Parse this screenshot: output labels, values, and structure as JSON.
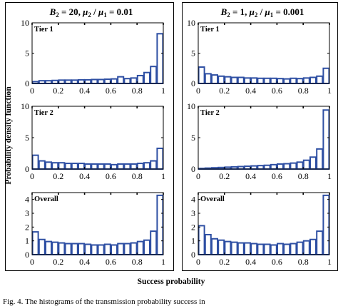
{
  "figure": {
    "y_axis_label": "Probability density function",
    "x_axis_label": "Success probability",
    "caption_fragment": "Fig. 4.  The histograms of the transmission probability success in",
    "bar_color": "#2e4fa3"
  },
  "panel_headers": [
    {
      "b_symbol": "B",
      "b_sub": "2",
      "b_value": " = 20, ",
      "mu_num": "μ",
      "mu_num_sub": "2",
      "slash": " / ",
      "mu_den": "μ",
      "mu_den_sub": "1",
      "ratio": " = 0.01"
    },
    {
      "b_symbol": "B",
      "b_sub": "2",
      "b_value": " = 1, ",
      "mu_num": "μ",
      "mu_num_sub": "2",
      "slash": " / ",
      "mu_den": "μ",
      "mu_den_sub": "1",
      "ratio": " = 0.001"
    }
  ],
  "chart_data": [
    {
      "type": "bar",
      "column": 0,
      "row": 0,
      "legend": "Tier 1",
      "xlim": [
        0,
        1
      ],
      "ylim": [
        0,
        10
      ],
      "xticks": [
        "0",
        "0.2",
        "0.4",
        "0.6",
        "0.8",
        "1"
      ],
      "yticks": [
        "0",
        "5",
        "10"
      ],
      "bin_width": 0.05,
      "x": [
        0.025,
        0.075,
        0.125,
        0.175,
        0.225,
        0.275,
        0.325,
        0.375,
        0.425,
        0.475,
        0.525,
        0.575,
        0.625,
        0.675,
        0.725,
        0.775,
        0.825,
        0.875,
        0.925,
        0.975
      ],
      "values": [
        0.3,
        0.45,
        0.45,
        0.5,
        0.55,
        0.55,
        0.55,
        0.6,
        0.6,
        0.65,
        0.65,
        0.7,
        0.75,
        1.1,
        0.8,
        0.9,
        1.3,
        1.8,
        2.8,
        8.2
      ]
    },
    {
      "type": "bar",
      "column": 0,
      "row": 1,
      "legend": "Tier 2",
      "xlim": [
        0,
        1
      ],
      "ylim": [
        0,
        10
      ],
      "xticks": [
        "0",
        "0.2",
        "0.4",
        "0.6",
        "0.8",
        "1"
      ],
      "yticks": [
        "0",
        "5",
        "10"
      ],
      "bin_width": 0.05,
      "x": [
        0.025,
        0.075,
        0.125,
        0.175,
        0.225,
        0.275,
        0.325,
        0.375,
        0.425,
        0.475,
        0.525,
        0.575,
        0.625,
        0.675,
        0.725,
        0.775,
        0.825,
        0.875,
        0.925,
        0.975
      ],
      "values": [
        2.2,
        1.3,
        1.1,
        1.0,
        1.0,
        0.9,
        0.9,
        0.9,
        0.8,
        0.8,
        0.8,
        0.8,
        0.7,
        0.8,
        0.8,
        0.8,
        0.9,
        1.0,
        1.3,
        3.3
      ]
    },
    {
      "type": "bar",
      "column": 0,
      "row": 2,
      "legend": "Overall",
      "xlim": [
        0,
        1
      ],
      "ylim": [
        0,
        4.5
      ],
      "xticks": [
        "0",
        "0.2",
        "0.4",
        "0.6",
        "0.8",
        "1"
      ],
      "yticks": [
        "0",
        "1",
        "2",
        "3",
        "4"
      ],
      "bin_width": 0.05,
      "x": [
        0.025,
        0.075,
        0.125,
        0.175,
        0.225,
        0.275,
        0.325,
        0.375,
        0.425,
        0.475,
        0.525,
        0.575,
        0.625,
        0.675,
        0.725,
        0.775,
        0.825,
        0.875,
        0.925,
        0.975
      ],
      "values": [
        1.65,
        1.1,
        0.95,
        0.9,
        0.85,
        0.8,
        0.8,
        0.8,
        0.75,
        0.7,
        0.7,
        0.75,
        0.7,
        0.8,
        0.8,
        0.85,
        0.95,
        1.05,
        1.7,
        4.3
      ]
    },
    {
      "type": "bar",
      "column": 1,
      "row": 0,
      "legend": "Tier 1",
      "xlim": [
        0,
        1
      ],
      "ylim": [
        0,
        10
      ],
      "xticks": [
        "0",
        "0.2",
        "0.4",
        "0.6",
        "0.8",
        "1"
      ],
      "yticks": [
        "0",
        "5",
        "10"
      ],
      "bin_width": 0.05,
      "x": [
        0.025,
        0.075,
        0.125,
        0.175,
        0.225,
        0.275,
        0.325,
        0.375,
        0.425,
        0.475,
        0.525,
        0.575,
        0.625,
        0.675,
        0.725,
        0.775,
        0.825,
        0.875,
        0.925,
        0.975
      ],
      "values": [
        2.7,
        1.6,
        1.4,
        1.2,
        1.1,
        1.0,
        1.0,
        0.9,
        0.9,
        0.85,
        0.85,
        0.85,
        0.8,
        0.75,
        0.85,
        0.8,
        0.9,
        1.0,
        1.2,
        2.5
      ]
    },
    {
      "type": "bar",
      "column": 1,
      "row": 1,
      "legend": "Tier 2",
      "xlim": [
        0,
        1
      ],
      "ylim": [
        0,
        10
      ],
      "xticks": [
        "0",
        "0.2",
        "0.4",
        "0.6",
        "0.8",
        "1"
      ],
      "yticks": [
        "0",
        "5",
        "10"
      ],
      "bin_width": 0.05,
      "x": [
        0.025,
        0.075,
        0.125,
        0.175,
        0.225,
        0.275,
        0.325,
        0.375,
        0.425,
        0.475,
        0.525,
        0.575,
        0.625,
        0.675,
        0.725,
        0.775,
        0.825,
        0.875,
        0.925,
        0.975
      ],
      "values": [
        0.1,
        0.15,
        0.2,
        0.25,
        0.3,
        0.35,
        0.4,
        0.45,
        0.5,
        0.55,
        0.6,
        0.7,
        0.8,
        0.85,
        0.95,
        1.1,
        1.4,
        1.9,
        3.2,
        9.4
      ]
    },
    {
      "type": "bar",
      "column": 1,
      "row": 2,
      "legend": "Overall",
      "xlim": [
        0,
        1
      ],
      "ylim": [
        0,
        4.5
      ],
      "xticks": [
        "0",
        "0.2",
        "0.4",
        "0.6",
        "0.8",
        "1"
      ],
      "yticks": [
        "0",
        "1",
        "2",
        "3",
        "4"
      ],
      "bin_width": 0.05,
      "x": [
        0.025,
        0.075,
        0.125,
        0.175,
        0.225,
        0.275,
        0.325,
        0.375,
        0.425,
        0.475,
        0.525,
        0.575,
        0.625,
        0.675,
        0.725,
        0.775,
        0.825,
        0.875,
        0.925,
        0.975
      ],
      "values": [
        2.1,
        1.45,
        1.15,
        1.05,
        0.95,
        0.9,
        0.85,
        0.85,
        0.8,
        0.75,
        0.75,
        0.7,
        0.8,
        0.75,
        0.8,
        0.9,
        1.0,
        1.1,
        1.7,
        4.3
      ]
    }
  ]
}
